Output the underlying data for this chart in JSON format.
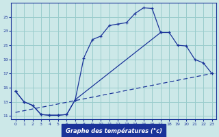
{
  "xlabel": "Graphe des températures (°c)",
  "background_color": "#cce8e8",
  "grid_color": "#99cccc",
  "line_color": "#1a3399",
  "xlim": [
    -0.5,
    23.5
  ],
  "ylim": [
    10.5,
    27.0
  ],
  "yticks": [
    11,
    13,
    15,
    17,
    19,
    21,
    23,
    25
  ],
  "xticks": [
    0,
    1,
    2,
    3,
    4,
    5,
    6,
    7,
    8,
    9,
    10,
    11,
    12,
    13,
    14,
    15,
    16,
    17,
    18,
    19,
    20,
    21,
    22,
    23
  ],
  "line1_x": [
    0,
    1,
    2,
    3,
    4,
    5,
    6,
    7,
    8,
    9,
    10,
    11,
    12,
    13,
    14,
    15,
    16,
    17
  ],
  "line1_y": [
    14.5,
    13.0,
    12.5,
    11.2,
    11.1,
    11.1,
    11.2,
    13.3,
    19.2,
    21.8,
    22.3,
    23.8,
    24.0,
    24.2,
    25.5,
    26.3,
    26.2,
    22.8
  ],
  "line2_x": [
    0,
    1,
    2,
    3,
    4,
    5,
    6,
    7,
    17,
    18,
    19,
    20,
    21,
    22,
    23
  ],
  "line2_y": [
    14.5,
    13.0,
    12.5,
    11.2,
    11.1,
    11.1,
    11.2,
    13.3,
    22.8,
    22.8,
    21.0,
    20.9,
    19.0,
    18.5,
    17.0
  ],
  "line3_x": [
    0,
    23
  ],
  "line3_y": [
    11.5,
    17.0
  ]
}
